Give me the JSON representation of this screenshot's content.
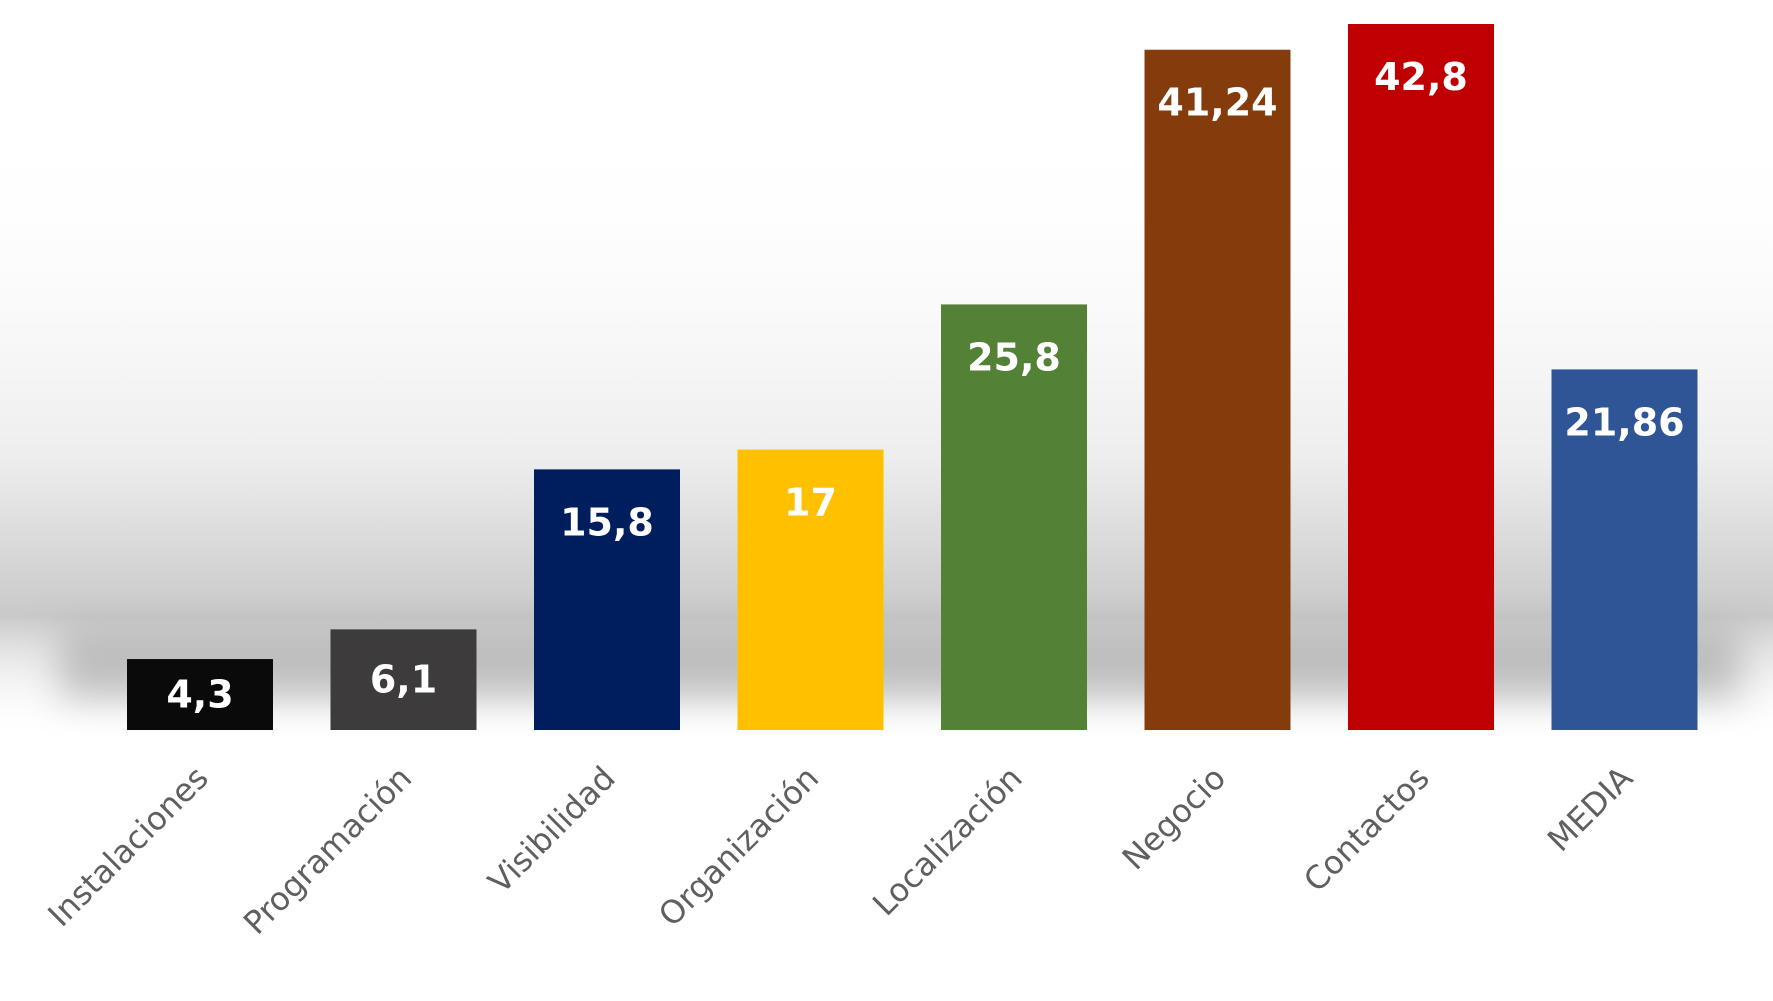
{
  "chart_data": {
    "type": "bar",
    "categories": [
      "Instalaciones",
      "Programación",
      "Visibilidad",
      "Organización",
      "Localización",
      "Negocio",
      "Contactos",
      "MEDIA"
    ],
    "values": [
      4.3,
      6.1,
      15.8,
      17,
      25.8,
      41.24,
      42.8,
      21.86
    ],
    "value_labels": [
      "4,3",
      "6,1",
      "15,8",
      "17",
      "25,8",
      "41,24",
      "42,8",
      "21,86"
    ],
    "colors": [
      "#0a0a0a",
      "#3d3b3b",
      "#001e5e",
      "#ffc000",
      "#538135",
      "#843c0c",
      "#c00000",
      "#2f5597"
    ],
    "label_colors": [
      "#ffffff",
      "#ffffff",
      "#ffffff",
      "#ffffff",
      "#ffffff",
      "#ffffff",
      "#ffffff",
      "#ffffff"
    ],
    "ylim": [
      0,
      42.8
    ],
    "grid": false,
    "legend": "none"
  }
}
